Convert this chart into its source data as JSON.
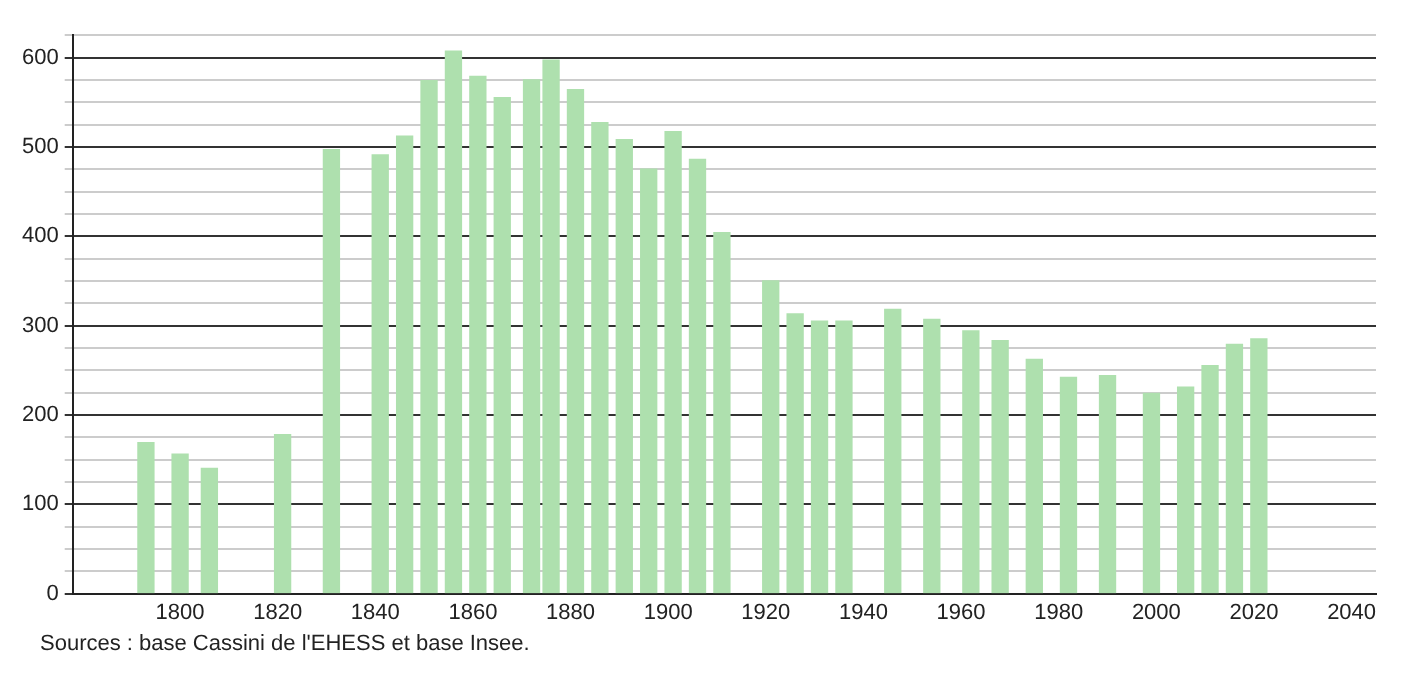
{
  "chart_data": {
    "type": "bar",
    "x": [
      1793,
      1800,
      1806,
      1821,
      1831,
      1841,
      1846,
      1851,
      1856,
      1861,
      1866,
      1872,
      1876,
      1881,
      1886,
      1891,
      1896,
      1901,
      1906,
      1911,
      1921,
      1926,
      1931,
      1936,
      1946,
      1954,
      1962,
      1968,
      1975,
      1982,
      1990,
      1999,
      2006,
      2011,
      2016,
      2021
    ],
    "values": [
      169,
      156,
      140,
      178,
      497,
      491,
      512,
      574,
      607,
      579,
      555,
      575,
      597,
      564,
      527,
      508,
      475,
      517,
      486,
      404,
      350,
      313,
      305,
      305,
      318,
      307,
      294,
      283,
      262,
      242,
      244,
      224,
      231,
      255,
      279,
      285
    ],
    "color": "#aee0ae",
    "xlim": [
      1778,
      2045
    ],
    "xticks": [
      1800,
      1820,
      1840,
      1860,
      1880,
      1900,
      1920,
      1940,
      1960,
      1980,
      2000,
      2020,
      2040
    ],
    "ylim": [
      0,
      625
    ],
    "yticks": [
      0,
      {
        "value": 25,
        "label": null
      },
      {
        "value": 50,
        "label": null
      },
      {
        "value": 75,
        "label": null
      },
      100,
      {
        "value": 125,
        "label": null
      },
      {
        "value": 150,
        "label": null
      },
      {
        "value": 175,
        "label": null
      },
      200,
      {
        "value": 225,
        "label": null
      },
      {
        "value": 250,
        "label": null
      },
      {
        "value": 275,
        "label": null
      },
      300,
      {
        "value": 325,
        "label": null
      },
      {
        "value": 350,
        "label": null
      },
      {
        "value": 375,
        "label": null
      },
      400,
      {
        "value": 425,
        "label": null
      },
      {
        "value": 450,
        "label": null
      },
      {
        "value": 475,
        "label": null
      },
      500,
      {
        "value": 525,
        "label": null
      },
      {
        "value": 550,
        "label": null
      },
      {
        "value": 575,
        "label": null
      },
      600,
      {
        "value": 625,
        "label": null
      }
    ],
    "grid": "y",
    "annotations": [
      "Sources : base Cassini de l'EHESS et base Insee."
    ]
  }
}
